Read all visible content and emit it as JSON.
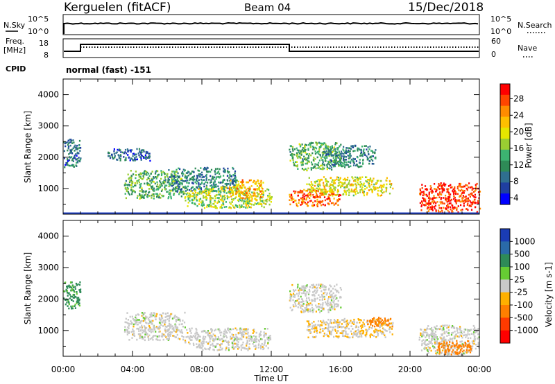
{
  "header": {
    "site": "Kerguelen (fitACF)",
    "beam": "Beam 04",
    "date": "15/Dec/2018"
  },
  "status_panels": {
    "nsky_label": "N.Sky",
    "nsky_ticks": [
      "10^5",
      "10^0"
    ],
    "nsearch_label": "N.Search",
    "nsearch_ticks": [
      "10^5",
      "10^0"
    ],
    "freq_label_line1": "Freq.",
    "freq_label_line2": "[MHz]",
    "freq_ticks": [
      "18",
      "8"
    ],
    "nave_label": "Nave",
    "nave_ticks": [
      "60",
      "0"
    ],
    "cpid_label": "CPID",
    "cpid_text": "normal (fast) -151"
  },
  "colorbars": {
    "power": {
      "label": "Power [dB]",
      "ticks": [
        "28",
        "24",
        "20",
        "16",
        "12",
        "8",
        "4"
      ],
      "colors": [
        "#ff0000",
        "#ff4500",
        "#ff8c00",
        "#ffbf00",
        "#e6e600",
        "#9acd32",
        "#3cb371",
        "#2e8b57",
        "#2f6f8f",
        "#1f3fa0",
        "#0000ff"
      ]
    },
    "velocity": {
      "label": "Velocity [m s-1]",
      "ticks": [
        "1000",
        "500",
        "100",
        "25",
        "-25",
        "-100",
        "-500",
        "-1000"
      ],
      "colors": [
        "#1a3cb4",
        "#2a6aa8",
        "#2e8b57",
        "#66cc33",
        "#c8c8c8",
        "#ffb000",
        "#ff7f00",
        "#ff3a00",
        "#ff0000"
      ]
    }
  },
  "axes": {
    "y_label": "Slant Range [km]",
    "y_ticks": [
      "4000",
      "3000",
      "2000",
      "1000"
    ],
    "x_label": "Time UT",
    "x_ticks": [
      "00:00",
      "04:00",
      "08:00",
      "12:00",
      "16:00",
      "20:00",
      "00:00"
    ]
  },
  "chart_data": [
    {
      "type": "heatmap",
      "title": "",
      "ylabel": "Slant Range [km]",
      "xlabel": "",
      "xlim_hours": [
        0,
        24
      ],
      "ylim": [
        180,
        4500
      ],
      "quantity": "Power [dB]",
      "clim": [
        0,
        30
      ],
      "echo_regions": [
        {
          "t": [
            0,
            1
          ],
          "range": [
            1700,
            2600
          ],
          "value": 6
        },
        {
          "t": [
            2.5,
            5
          ],
          "range": [
            1900,
            2300
          ],
          "value": 5
        },
        {
          "t": [
            3.5,
            7
          ],
          "range": [
            700,
            1600
          ],
          "value": 12
        },
        {
          "t": [
            6,
            10
          ],
          "range": [
            900,
            1700
          ],
          "value": 8
        },
        {
          "t": [
            7,
            12
          ],
          "range": [
            400,
            1100
          ],
          "value": 16
        },
        {
          "t": [
            9.5,
            11.5
          ],
          "range": [
            700,
            1300
          ],
          "value": 22
        },
        {
          "t": [
            13,
            16
          ],
          "range": [
            450,
            1000
          ],
          "value": 26
        },
        {
          "t": [
            13,
            16
          ],
          "range": [
            1600,
            2500
          ],
          "value": 12
        },
        {
          "t": [
            14,
            19
          ],
          "range": [
            800,
            1400
          ],
          "value": 18
        },
        {
          "t": [
            15,
            18
          ],
          "range": [
            1700,
            2400
          ],
          "value": 8
        },
        {
          "t": [
            20.5,
            24
          ],
          "range": [
            250,
            1200
          ],
          "value": 28
        }
      ]
    },
    {
      "type": "heatmap",
      "title": "",
      "ylabel": "Slant Range [km]",
      "xlabel": "Time UT",
      "xlim_hours": [
        0,
        24
      ],
      "ylim": [
        180,
        4500
      ],
      "quantity": "Velocity [m s-1]",
      "clim": [
        -1000,
        1000
      ],
      "echo_regions": [
        {
          "t": [
            0,
            1
          ],
          "range": [
            1700,
            2600
          ],
          "value": 80
        },
        {
          "t": [
            3.5,
            7
          ],
          "range": [
            700,
            1600
          ],
          "value": 0
        },
        {
          "t": [
            7,
            12
          ],
          "range": [
            400,
            1100
          ],
          "value": 0
        },
        {
          "t": [
            13,
            16
          ],
          "range": [
            1600,
            2500
          ],
          "value": 0
        },
        {
          "t": [
            14,
            19
          ],
          "range": [
            800,
            1400
          ],
          "value": -20
        },
        {
          "t": [
            17.5,
            19
          ],
          "range": [
            1150,
            1450
          ],
          "value": -150
        },
        {
          "t": [
            20.5,
            24
          ],
          "range": [
            250,
            1200
          ],
          "value": 0
        },
        {
          "t": [
            21.5,
            23.5
          ],
          "range": [
            250,
            700
          ],
          "value": -200
        }
      ]
    }
  ]
}
